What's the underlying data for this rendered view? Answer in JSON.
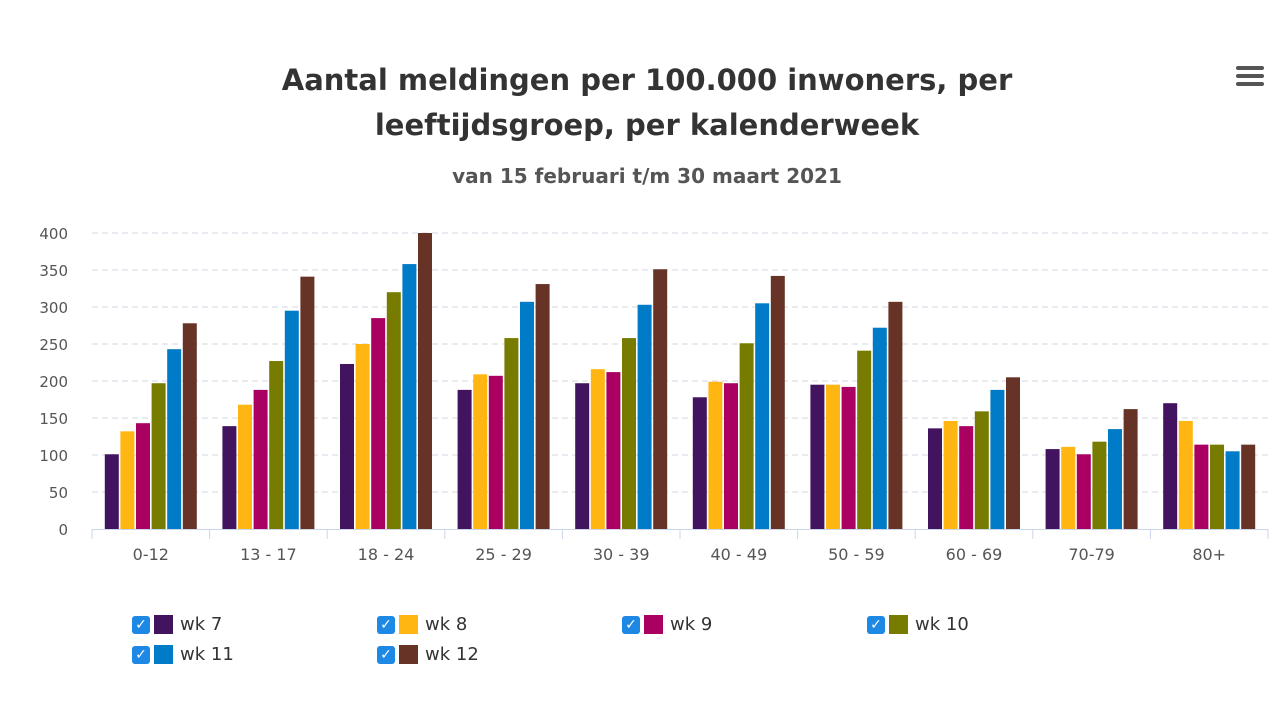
{
  "chart_data": {
    "type": "bar",
    "title": "Aantal meldingen per 100.000 inwoners, per leeftijdsgroep, per kalenderweek",
    "subtitle": "van 15 februari t/m 30 maart 2021",
    "categories": [
      "0-12",
      "13 - 17",
      "18 - 24",
      "25 - 29",
      "30 - 39",
      "40 - 49",
      "50 - 59",
      "60 - 69",
      "70-79",
      "80+"
    ],
    "ylim": [
      0,
      400
    ],
    "yticks": [
      0,
      50,
      100,
      150,
      200,
      250,
      300,
      350,
      400
    ],
    "grid": true,
    "legend_position": "bottom",
    "series": [
      {
        "name": "wk 7",
        "color": "#42145f",
        "values": [
          101,
          139,
          223,
          188,
          197,
          178,
          195,
          136,
          108,
          170
        ]
      },
      {
        "name": "wk 8",
        "color": "#ffb612",
        "values": [
          132,
          168,
          250,
          209,
          216,
          199,
          195,
          146,
          111,
          146
        ]
      },
      {
        "name": "wk 9",
        "color": "#a90061",
        "values": [
          143,
          188,
          285,
          207,
          212,
          197,
          192,
          139,
          101,
          114
        ]
      },
      {
        "name": "wk 10",
        "color": "#777c00",
        "values": [
          197,
          227,
          320,
          258,
          258,
          251,
          241,
          159,
          118,
          114
        ]
      },
      {
        "name": "wk 11",
        "color": "#007bc7",
        "values": [
          243,
          295,
          358,
          307,
          303,
          305,
          272,
          188,
          135,
          105
        ]
      },
      {
        "name": "wk 12",
        "color": "#673327",
        "values": [
          278,
          341,
          400,
          331,
          351,
          342,
          307,
          205,
          162,
          114
        ]
      }
    ]
  },
  "menu_icon": "hamburger-menu-icon",
  "checkbox_mark": "✓"
}
